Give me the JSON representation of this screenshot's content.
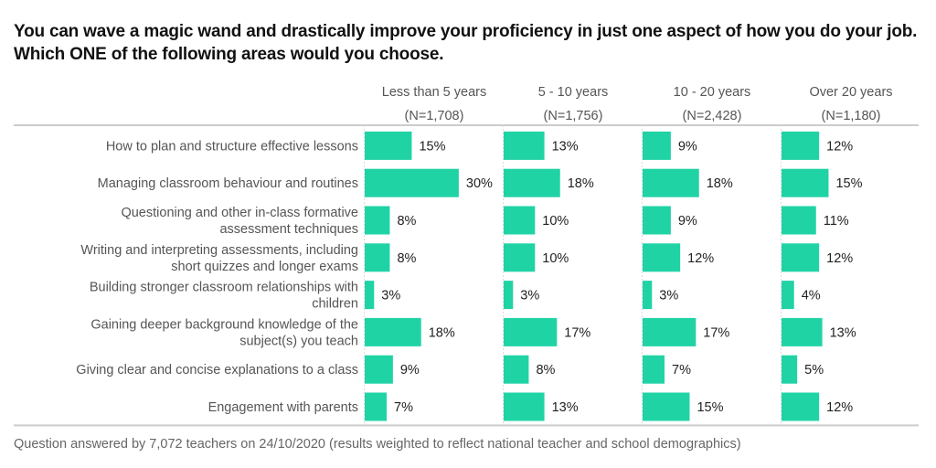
{
  "title": "You can wave a magic wand and drastically improve your proficiency in just one aspect of how you do your job. Which ONE of the following areas would you choose.",
  "footer": "Question answered by 7,072 teachers on 24/10/2020 (results weighted to reflect national teacher and school demographics)",
  "colors": {
    "bar": "#20d3a5",
    "grid": "#dcdcdc",
    "axis": "#cccccc"
  },
  "chart_data": {
    "type": "bar",
    "orientation": "horizontal",
    "title": "You can wave a magic wand and drastically improve your proficiency in just one aspect of how you do your job. Which ONE of the following areas would you choose.",
    "categories": [
      [
        "How to plan and structure effective lessons"
      ],
      [
        "Managing classroom behaviour and routines"
      ],
      [
        "Questioning and other in-class formative",
        "assessment techniques"
      ],
      [
        "Writing and interpreting assessments, including",
        "short quizzes and longer exams"
      ],
      [
        "Building stronger classroom relationships with",
        "children"
      ],
      [
        "Gaining deeper background knowledge of the",
        "subject(s) you teach"
      ],
      [
        "Giving clear and concise explanations to a class"
      ],
      [
        "Engagement with parents"
      ]
    ],
    "series": [
      {
        "name": "Less than 5 years",
        "n": "(N=1,708)",
        "values": [
          15,
          30,
          8,
          8,
          3,
          18,
          9,
          7
        ]
      },
      {
        "name": "5 - 10 years",
        "n": "(N=1,756)",
        "values": [
          13,
          18,
          10,
          10,
          3,
          17,
          8,
          13
        ]
      },
      {
        "name": "10 - 20 years",
        "n": "(N=2,428)",
        "values": [
          9,
          18,
          9,
          12,
          3,
          17,
          7,
          15
        ]
      },
      {
        "name": "Over 20 years",
        "n": "(N=1,180)",
        "values": [
          12,
          15,
          11,
          12,
          4,
          13,
          5,
          12
        ]
      }
    ],
    "value_suffix": "%",
    "xlim": [
      0,
      40
    ],
    "xlabel": "",
    "ylabel": "",
    "grid": false,
    "legend": "none"
  }
}
